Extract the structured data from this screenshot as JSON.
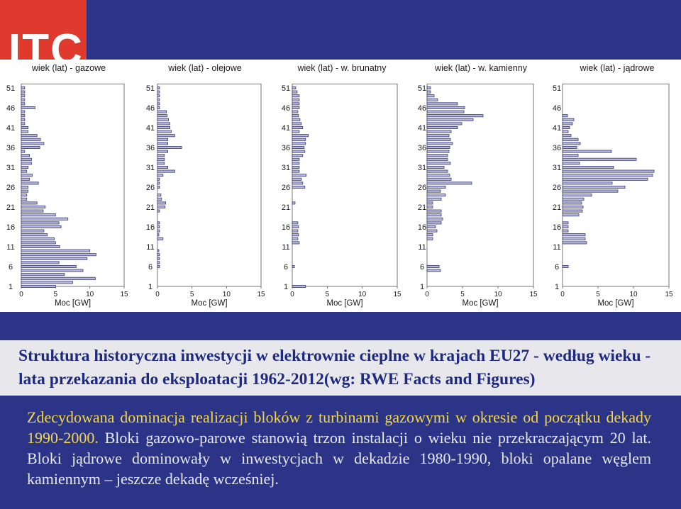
{
  "logo": {
    "text": "ITC"
  },
  "colors": {
    "background": "#2b3487",
    "logo_red": "#e03a2e",
    "bar_fill": "#b8b8d8",
    "bar_stroke": "#3b3b78",
    "title_band": "#e8e8ec",
    "title_text": "#1e2a80",
    "intro_text": "#f2d84a",
    "body_text": "#e8e8f0"
  },
  "chart_data": [
    {
      "type": "bar",
      "orientation": "horizontal",
      "title": "wiek (lat) - gazowe",
      "xlabel": "Moc [GW]",
      "xlim": [
        0,
        15
      ],
      "xticks": [
        0,
        5,
        10,
        15
      ],
      "ylim": [
        1,
        52
      ],
      "yticks": [
        1,
        6,
        11,
        16,
        21,
        26,
        31,
        36,
        41,
        46,
        51
      ],
      "ages": [
        1,
        2,
        3,
        4,
        5,
        6,
        7,
        8,
        9,
        10,
        11,
        12,
        13,
        14,
        15,
        16,
        17,
        18,
        19,
        20,
        21,
        22,
        23,
        24,
        25,
        26,
        27,
        28,
        29,
        30,
        31,
        32,
        33,
        34,
        35,
        36,
        37,
        38,
        39,
        40,
        41,
        42,
        43,
        44,
        45,
        46,
        47,
        48,
        49,
        50,
        51
      ],
      "values": [
        5.0,
        7.5,
        10.8,
        6.3,
        9.0,
        8.0,
        5.5,
        9.6,
        10.9,
        10.0,
        5.6,
        5.0,
        4.8,
        3.8,
        3.3,
        5.8,
        5.5,
        6.8,
        5.0,
        3.2,
        3.5,
        2.3,
        0.8,
        0.8,
        1.0,
        1.0,
        2.5,
        1.2,
        1.6,
        0.8,
        1.0,
        1.5,
        1.5,
        1.2,
        0.5,
        2.7,
        3.3,
        2.8,
        2.3,
        1.0,
        1.0,
        0.5,
        0.5,
        0.5,
        0.5,
        2.0,
        0.5,
        0.5,
        0.5,
        0.5,
        0.5
      ]
    },
    {
      "type": "bar",
      "orientation": "horizontal",
      "title": "wiek (lat) - olejowe",
      "xlabel": "Moc [GW]",
      "xlim": [
        0,
        15
      ],
      "xticks": [
        0,
        5,
        10,
        15
      ],
      "ylim": [
        1,
        52
      ],
      "yticks": [
        1,
        6,
        11,
        16,
        21,
        26,
        31,
        36,
        41,
        46,
        51
      ],
      "ages": [
        1,
        2,
        3,
        4,
        5,
        6,
        7,
        8,
        9,
        10,
        11,
        12,
        13,
        14,
        15,
        16,
        17,
        18,
        19,
        20,
        21,
        22,
        23,
        24,
        25,
        26,
        27,
        28,
        29,
        30,
        31,
        32,
        33,
        34,
        35,
        36,
        37,
        38,
        39,
        40,
        41,
        42,
        43,
        44,
        45,
        46,
        47,
        48,
        49,
        50,
        51
      ],
      "values": [
        0.0,
        0.0,
        0.0,
        0.0,
        0.0,
        0.3,
        0.3,
        0.3,
        0.3,
        0.2,
        0.0,
        0.0,
        0.8,
        0.2,
        0.3,
        0.3,
        0.3,
        0.0,
        0.0,
        0.3,
        1.1,
        1.2,
        0.6,
        0.5,
        0.0,
        0.3,
        0.3,
        0.3,
        0.8,
        2.5,
        1.5,
        1.0,
        1.0,
        1.0,
        1.5,
        3.5,
        1.5,
        1.5,
        2.5,
        2.0,
        1.8,
        1.8,
        1.6,
        1.4,
        1.3,
        0.3,
        0.3,
        0.3,
        0.3,
        0.3,
        0.3
      ]
    },
    {
      "type": "bar",
      "orientation": "horizontal",
      "title": "wiek (lat) - w. brunatny",
      "xlabel": "Moc [GW]",
      "xlim": [
        0,
        15
      ],
      "xticks": [
        0,
        5,
        10,
        15
      ],
      "ylim": [
        1,
        52
      ],
      "yticks": [
        1,
        6,
        11,
        16,
        21,
        26,
        31,
        36,
        41,
        46,
        51
      ],
      "ages": [
        1,
        2,
        3,
        4,
        5,
        6,
        7,
        8,
        9,
        10,
        11,
        12,
        13,
        14,
        15,
        16,
        17,
        18,
        19,
        20,
        21,
        22,
        23,
        24,
        25,
        26,
        27,
        28,
        29,
        30,
        31,
        32,
        33,
        34,
        35,
        36,
        37,
        38,
        39,
        40,
        41,
        42,
        43,
        44,
        45,
        46,
        47,
        48,
        49,
        50,
        51
      ],
      "values": [
        1.9,
        0.0,
        0.0,
        0.0,
        0.0,
        0.3,
        0.0,
        0.0,
        0.0,
        0.0,
        0.0,
        1.0,
        0.8,
        0.9,
        0.8,
        0.9,
        0.8,
        0.0,
        0.0,
        0.0,
        0.0,
        0.4,
        0.0,
        0.0,
        0.0,
        1.8,
        1.5,
        1.3,
        2.0,
        1.0,
        1.0,
        1.0,
        1.0,
        1.5,
        1.8,
        1.7,
        1.9,
        1.9,
        2.3,
        1.0,
        1.5,
        1.3,
        1.1,
        0.9,
        0.8,
        1.0,
        1.0,
        1.0,
        1.0,
        0.7,
        0.5
      ]
    },
    {
      "type": "bar",
      "orientation": "horizontal",
      "title": "wiek (lat) - w. kamienny",
      "xlabel": "Moc [GW]",
      "xlim": [
        0,
        15
      ],
      "xticks": [
        0,
        5,
        10,
        15
      ],
      "ylim": [
        1,
        52
      ],
      "yticks": [
        1,
        6,
        11,
        16,
        21,
        26,
        31,
        36,
        41,
        46,
        51
      ],
      "ages": [
        1,
        2,
        3,
        4,
        5,
        6,
        7,
        8,
        9,
        10,
        11,
        12,
        13,
        14,
        15,
        16,
        17,
        18,
        19,
        20,
        21,
        22,
        23,
        24,
        25,
        26,
        27,
        28,
        29,
        30,
        31,
        32,
        33,
        34,
        35,
        36,
        37,
        38,
        39,
        40,
        41,
        42,
        43,
        44,
        45,
        46,
        47,
        48,
        49,
        50,
        51
      ],
      "values": [
        0.0,
        0.0,
        0.0,
        0.0,
        1.9,
        1.7,
        0.0,
        0.0,
        0.0,
        0.0,
        0.0,
        0.0,
        0.8,
        0.8,
        1.4,
        1.2,
        2.0,
        2.2,
        2.0,
        2.0,
        0.8,
        0.8,
        2.0,
        2.6,
        1.9,
        2.6,
        6.3,
        3.4,
        3.2,
        2.9,
        2.4,
        3.3,
        2.9,
        2.9,
        3.1,
        3.2,
        3.6,
        3.3,
        3.1,
        3.4,
        4.3,
        4.9,
        6.5,
        7.9,
        5.2,
        5.3,
        4.3,
        1.5,
        1.0,
        0.5,
        0.5
      ]
    },
    {
      "type": "bar",
      "orientation": "horizontal",
      "title": "wiek (lat) - jądrowe",
      "xlabel": "Moc [GW]",
      "xlim": [
        0,
        15
      ],
      "xticks": [
        0,
        5,
        10,
        15
      ],
      "ylim": [
        1,
        52
      ],
      "yticks": [
        1,
        6,
        11,
        16,
        21,
        26,
        31,
        36,
        41,
        46,
        51
      ],
      "ages": [
        1,
        2,
        3,
        4,
        5,
        6,
        7,
        8,
        9,
        10,
        11,
        12,
        13,
        14,
        15,
        16,
        17,
        18,
        19,
        20,
        21,
        22,
        23,
        24,
        25,
        26,
        27,
        28,
        29,
        30,
        31,
        32,
        33,
        34,
        35,
        36,
        37,
        38,
        39,
        40,
        41,
        42,
        43,
        44,
        45,
        46,
        47,
        48,
        49,
        50,
        51
      ],
      "values": [
        0.0,
        0.0,
        0.0,
        0.0,
        0.0,
        0.8,
        0.0,
        0.0,
        0.0,
        0.0,
        0.0,
        3.4,
        3.2,
        3.2,
        0.8,
        0.8,
        0.8,
        0.0,
        2.3,
        2.8,
        2.9,
        2.7,
        3.0,
        4.1,
        7.8,
        8.8,
        7.0,
        12.0,
        12.7,
        12.9,
        7.2,
        2.4,
        10.4,
        2.2,
        6.9,
        2.0,
        2.5,
        2.2,
        1.2,
        0.8,
        1.0,
        1.4,
        1.6,
        0.7,
        0.0,
        0.0,
        0.0,
        0.0,
        0.0,
        0.0,
        0.0
      ]
    }
  ],
  "title": "Struktura historyczna inwestycji w elektrownie cieplne w krajach EU27 - według wieku - lata przekazania do eksploatacji 1962-2012(wg: RWE Facts and Figures)",
  "body": {
    "intro": "Zdecydowana dominacja realizacji bloków z turbinami gazowymi w okresie od początku dekady 1990-2000.",
    "rest": " Bloki gazowo-parowe stanowią trzon instalacji o wieku nie przekraczającym 20 lat. Bloki jądrowe dominowały w inwestycjach w dekadzie 1980-1990, bloki opalane węglem kamiennym – jeszcze dekadę wcześniej."
  }
}
